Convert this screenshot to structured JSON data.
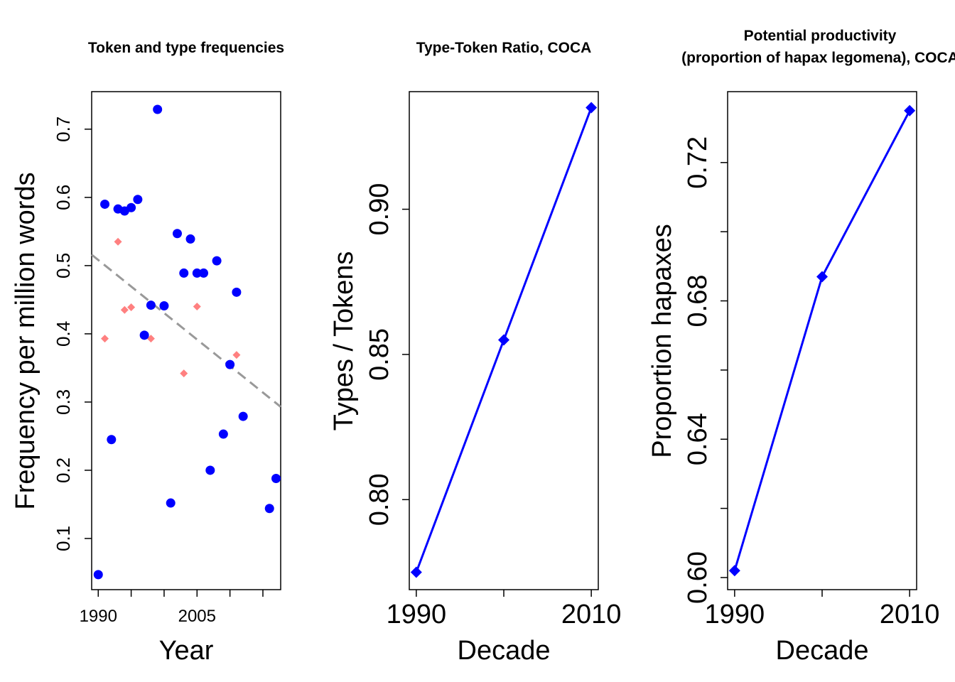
{
  "chart_data": [
    {
      "type": "scatter",
      "title": "Token and type frequencies",
      "xlabel": "Year",
      "ylabel": "Frequency per million words",
      "xlim": [
        1989,
        2017.7
      ],
      "ylim": [
        0.025,
        0.755
      ],
      "xticks": [
        1990,
        1995,
        2000,
        2005,
        2010,
        2015
      ],
      "xtick_labels": [
        "1990",
        "",
        "",
        "2005",
        "",
        ""
      ],
      "yticks": [
        0.1,
        0.2,
        0.3,
        0.4,
        0.5,
        0.6,
        0.7
      ],
      "ytick_labels": [
        "0.1",
        "0.2",
        "0.3",
        "0.4",
        "0.5",
        "0.6",
        "0.7"
      ],
      "series": [
        {
          "role": "tokens",
          "marker": "circle",
          "color": "#0000ff",
          "x": [
            1990,
            1991,
            1992,
            1993,
            1994,
            1995,
            1996,
            1997,
            1998,
            1999,
            2000,
            2001,
            2002,
            2003,
            2004,
            2005,
            2006,
            2007,
            2008,
            2009,
            2010,
            2011,
            2012,
            2013,
            2014,
            2015,
            2016,
            2017
          ],
          "y": [
            0.047,
            0.59,
            0.245,
            0.583,
            0.58,
            0.585,
            0.597,
            0.398,
            0.442,
            0.729,
            0.441,
            0.152,
            0.547,
            0.489,
            0.539,
            0.489,
            0.489,
            0.2,
            0.507,
            0.253,
            0.355,
            0.461,
            0.279,
            null,
            null,
            null,
            0.144,
            0.188
          ]
        },
        {
          "role": "types",
          "marker": "diamond",
          "color": "#ff8080",
          "x": [
            1990,
            1991,
            1992,
            1993,
            1994,
            1995,
            1996,
            1997,
            1998,
            1999,
            2000,
            2001,
            2002,
            2003,
            2004,
            2005,
            2006,
            2007,
            2008,
            2009,
            2010,
            2011,
            2012,
            2013,
            2014,
            2015,
            2016,
            2017
          ],
          "y": [
            0.047,
            0.393,
            0.245,
            0.535,
            0.435,
            0.439,
            0.597,
            0.398,
            0.393,
            0.729,
            0.441,
            0.152,
            0.547,
            0.342,
            0.539,
            0.44,
            0.489,
            0.2,
            0.507,
            0.253,
            0.355,
            0.369,
            0.279,
            null,
            null,
            null,
            0.144,
            0.188
          ]
        }
      ],
      "trend_line": {
        "color": "#999999",
        "style": "dashed",
        "x": [
          1989,
          2017.7
        ],
        "y": [
          0.516,
          0.293
        ]
      },
      "grid": false
    },
    {
      "type": "line",
      "title": "Type-Token Ratio, COCA",
      "xlabel": "Decade",
      "ylabel": "Types / Tokens",
      "x": [
        1990,
        2000,
        2010
      ],
      "y": [
        0.775,
        0.855,
        0.935
      ],
      "color": "#0000ff",
      "marker": "diamond",
      "xlim": [
        1989.2,
        2010.8
      ],
      "ylim": [
        0.769,
        0.9405
      ],
      "xticks": [
        1990,
        2000,
        2010
      ],
      "xtick_labels": [
        "1990",
        "",
        "2010"
      ],
      "yticks": [
        0.8,
        0.85,
        0.9
      ],
      "ytick_labels": [
        "0.80",
        "0.85",
        "0.90"
      ],
      "grid": false
    },
    {
      "type": "line",
      "title": "Potential productivity\n(proportion of hapax legomena), COCA",
      "title_lines": [
        "Potential productivity",
        "(proportion of hapax legomena), COCA"
      ],
      "xlabel": "Decade",
      "ylabel": "Proportion hapaxes",
      "x": [
        1990,
        2000,
        2010
      ],
      "y": [
        0.602,
        0.687,
        0.735
      ],
      "color": "#0000ff",
      "marker": "diamond",
      "xlim": [
        1989.2,
        2010.8
      ],
      "ylim": [
        0.5965,
        0.7405
      ],
      "xticks": [
        1990,
        2000,
        2010
      ],
      "xtick_labels": [
        "1990",
        "",
        "2010"
      ],
      "yticks": [
        0.6,
        0.62,
        0.64,
        0.66,
        0.68,
        0.7,
        0.72
      ],
      "ytick_labels": [
        "0.60",
        "",
        "0.64",
        "",
        "0.68",
        "",
        "0.72"
      ],
      "grid": false
    }
  ]
}
